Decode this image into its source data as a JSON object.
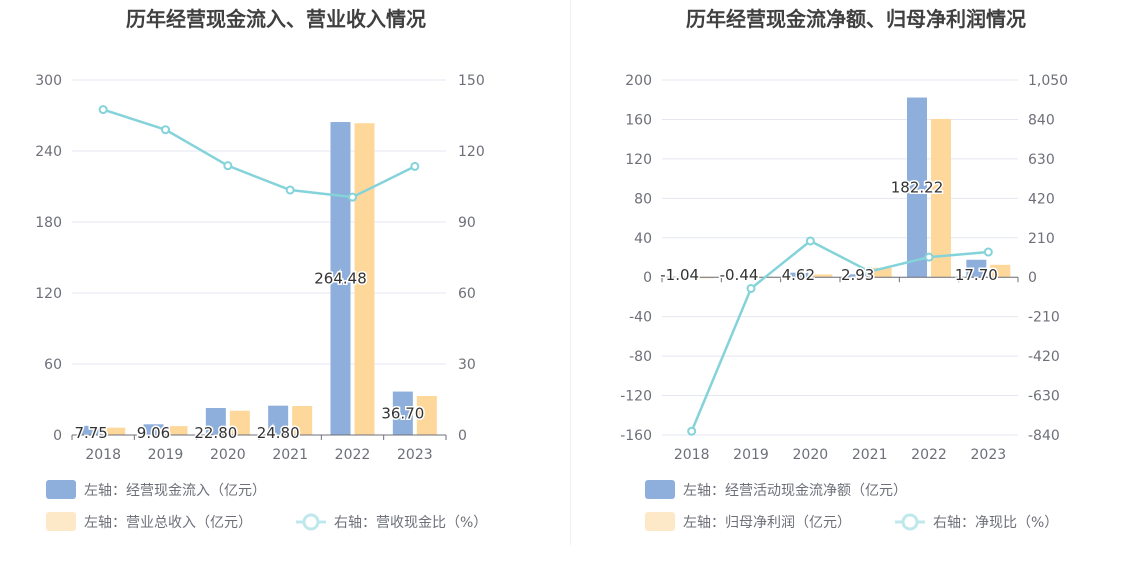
{
  "colors": {
    "bar_primary": "#8eaedb",
    "bar_secondary": "#fdd89a",
    "line": "#84d3da",
    "grid": "#e4e7f0",
    "axis_text": "#6e7079",
    "title_text": "#404040",
    "label_text": "#333333"
  },
  "chart_data": [
    {
      "type": "bar",
      "title": "历年经营现金流入、营业收入情况",
      "categories": [
        "2018",
        "2019",
        "2020",
        "2021",
        "2022",
        "2023"
      ],
      "left_axis": {
        "ylim": [
          0,
          300
        ],
        "ticks": [
          "0",
          "60",
          "120",
          "180",
          "240",
          "300"
        ]
      },
      "right_axis": {
        "ylim": [
          0,
          150
        ],
        "ticks": [
          "0",
          "30",
          "60",
          "90",
          "120",
          "150"
        ]
      },
      "series": [
        {
          "name": "左轴：经营现金流入（亿元）",
          "kind": "bar",
          "axis": "left",
          "values": [
            7.75,
            9.06,
            22.8,
            24.8,
            264.48,
            36.7
          ],
          "labels": [
            "7.75",
            "9.06",
            "22.80",
            "24.80",
            "264.48",
            "36.70"
          ]
        },
        {
          "name": "左轴：营业总收入（亿元）",
          "kind": "bar",
          "axis": "left",
          "values": [
            6.2,
            7.5,
            20.5,
            24.5,
            263.5,
            33.0
          ]
        },
        {
          "name": "右轴：营收现金比（%）",
          "kind": "line",
          "axis": "right",
          "values": [
            137.5,
            129.0,
            113.8,
            103.5,
            100.5,
            113.5
          ]
        }
      ],
      "legend_placement": "bottom",
      "grid": true
    },
    {
      "type": "bar",
      "title": "历年经营现金流净额、归母净利润情况",
      "categories": [
        "2018",
        "2019",
        "2020",
        "2021",
        "2022",
        "2023"
      ],
      "left_axis": {
        "ylim": [
          -160,
          200
        ],
        "ticks": [
          "-160",
          "-120",
          "-80",
          "-40",
          "0",
          "40",
          "80",
          "120",
          "160",
          "200"
        ]
      },
      "right_axis": {
        "ylim": [
          -840,
          1050
        ],
        "ticks": [
          "-840",
          "-630",
          "-420",
          "-210",
          "0",
          "210",
          "420",
          "630",
          "840",
          "1,050"
        ]
      },
      "series": [
        {
          "name": "左轴：经营活动现金流净额（亿元）",
          "kind": "bar",
          "axis": "left",
          "values": [
            -1.04,
            -0.44,
            4.62,
            2.93,
            182.22,
            17.7
          ],
          "labels": [
            "-1.04",
            "-0.44",
            "4.62",
            "2.93",
            "182.22",
            "17.70"
          ]
        },
        {
          "name": "左轴：归母净利润（亿元）",
          "kind": "bar",
          "axis": "left",
          "values": [
            -0.6,
            0.4,
            2.8,
            9.5,
            160.5,
            12.6
          ]
        },
        {
          "name": "右轴：净现比（%）",
          "kind": "line",
          "axis": "right",
          "values": [
            -820,
            -60,
            193,
            30,
            107,
            134
          ]
        }
      ],
      "legend_placement": "bottom",
      "grid": true
    }
  ]
}
